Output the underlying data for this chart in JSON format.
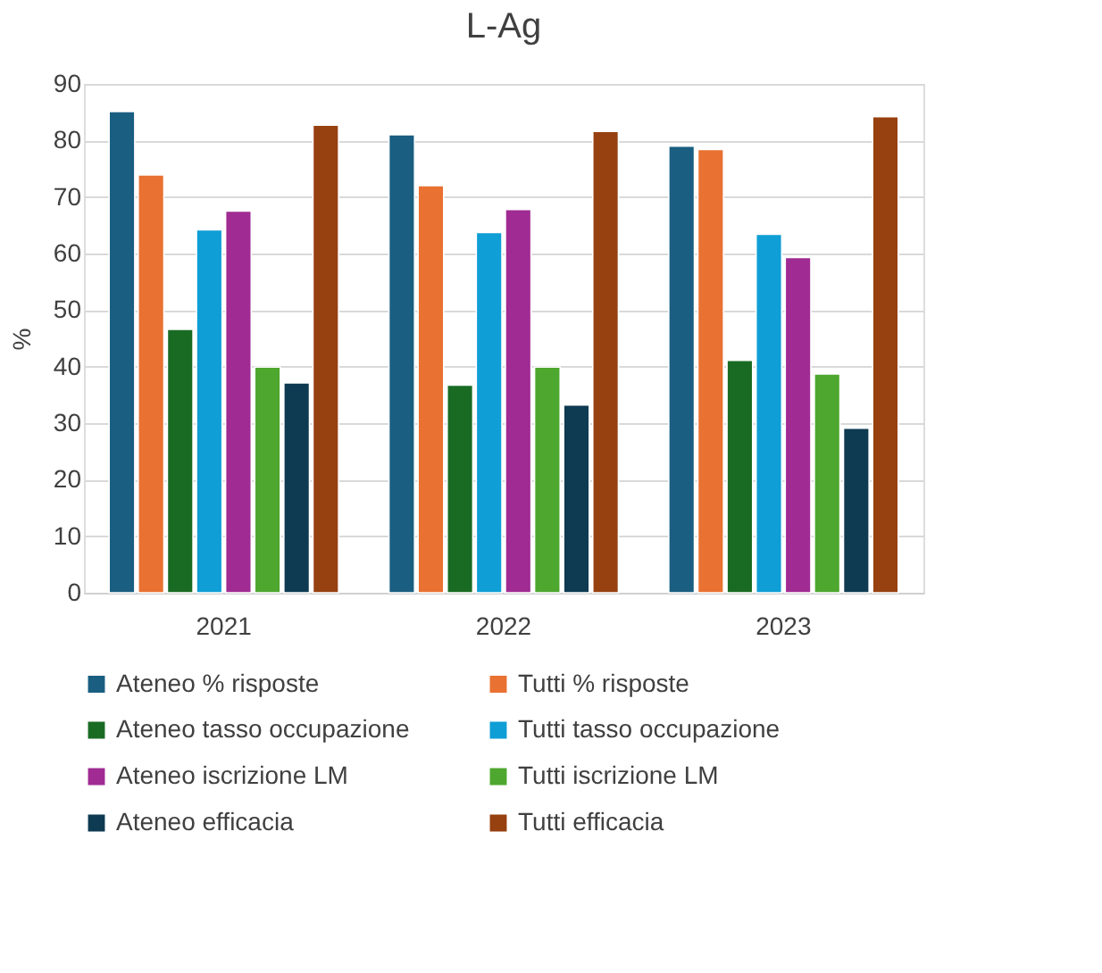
{
  "chart_data": {
    "type": "bar",
    "title": "L-Ag",
    "ylabel": "%",
    "categories": [
      "2021",
      "2022",
      "2023"
    ],
    "ylim": [
      0,
      90
    ],
    "yticks": [
      0,
      10,
      20,
      30,
      40,
      50,
      60,
      70,
      80,
      90
    ],
    "grid": "y",
    "legend": "bottom",
    "series": [
      {
        "name": "Ateneo % risposte",
        "color": "#1a5e82",
        "values": [
          85.1,
          81,
          79
        ]
      },
      {
        "name": "Tutti % risposte",
        "color": "#e97132",
        "values": [
          73.9,
          72,
          78.4
        ]
      },
      {
        "name": "Ateneo tasso occupazione",
        "color": "#196b24",
        "values": [
          46.6,
          36.7,
          41.1
        ]
      },
      {
        "name": "Tutti tasso occupazione",
        "color": "#0f9ed5",
        "values": [
          64.2,
          63.7,
          63.4
        ]
      },
      {
        "name": "Ateneo iscrizione LM",
        "color": "#a02b93",
        "values": [
          67.5,
          67.8,
          59.3
        ]
      },
      {
        "name": "Tutti iscrizione LM",
        "color": "#4ea72e",
        "values": [
          39.9,
          39.9,
          38.7
        ]
      },
      {
        "name": "Ateneo efficacia",
        "color": "#0e3a52",
        "values": [
          37.1,
          33.2,
          29.1
        ]
      },
      {
        "name": "Tutti efficacia",
        "color": "#974010",
        "values": [
          82.7,
          81.6,
          84.2
        ]
      }
    ]
  }
}
